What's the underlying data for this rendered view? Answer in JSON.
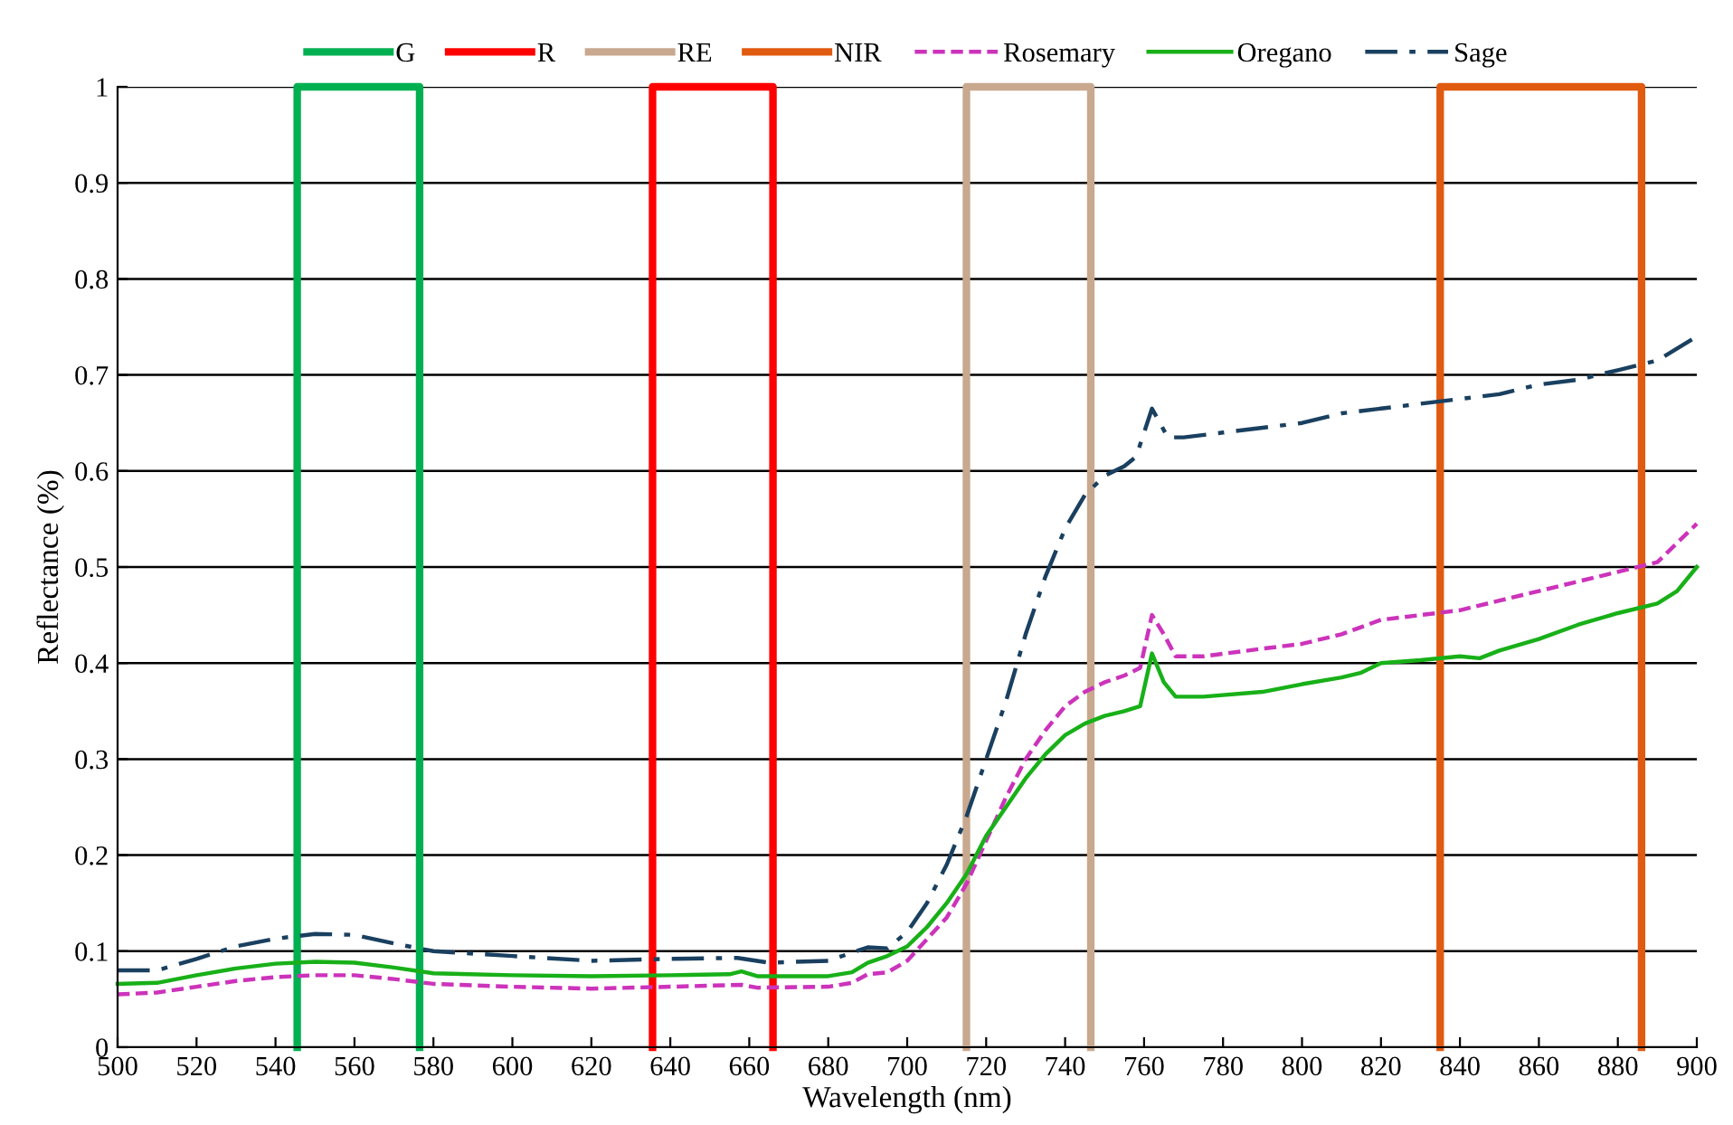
{
  "chart_data": {
    "type": "line",
    "xlabel": "Wavelength (nm)",
    "ylabel": "Reflectance (%)",
    "xlim": [
      500,
      900
    ],
    "xticks": [
      500,
      520,
      540,
      560,
      580,
      600,
      620,
      640,
      660,
      680,
      700,
      720,
      740,
      760,
      780,
      800,
      820,
      840,
      860,
      880,
      900
    ],
    "ylim": [
      0,
      1
    ],
    "yticks": [
      0,
      0.1,
      0.2,
      0.3,
      0.4,
      0.5,
      0.6,
      0.7,
      0.8,
      0.9,
      1
    ],
    "grid": "y",
    "legend": "top",
    "series": [
      {
        "name": "G",
        "color": "#00b050",
        "line_style": "solid",
        "x": [
          545.5,
          545.5,
          576.5,
          576.5
        ],
        "values": [
          0,
          1,
          1,
          0
        ]
      },
      {
        "name": "R",
        "color": "#ff0000",
        "line_style": "solid",
        "x": [
          635.5,
          635.5,
          666,
          666
        ],
        "values": [
          0,
          1,
          1,
          0
        ]
      },
      {
        "name": "RE",
        "color": "#c8a88e",
        "line_style": "solid",
        "x": [
          715,
          715,
          746.5,
          746.5
        ],
        "values": [
          0,
          1,
          1,
          0
        ]
      },
      {
        "name": "NIR",
        "color": "#e05a10",
        "line_style": "solid",
        "x": [
          835,
          835,
          886,
          886
        ],
        "values": [
          0,
          1,
          1,
          0
        ]
      },
      {
        "name": "Rosemary",
        "color": "#cc33bb",
        "line_style": "dashed",
        "x": [
          500,
          510,
          520,
          530,
          540,
          550,
          560,
          570,
          580,
          600,
          620,
          640,
          658,
          662,
          680,
          686,
          690,
          695,
          700,
          710,
          715,
          720,
          725,
          730,
          735,
          740,
          745,
          750,
          755,
          759,
          762,
          765,
          768,
          775,
          790,
          800,
          810,
          820,
          830,
          840,
          850,
          860,
          870,
          880,
          890,
          900
        ],
        "values": [
          0.055,
          0.057,
          0.063,
          0.069,
          0.073,
          0.075,
          0.075,
          0.071,
          0.066,
          0.063,
          0.061,
          0.063,
          0.065,
          0.062,
          0.063,
          0.067,
          0.076,
          0.078,
          0.09,
          0.135,
          0.17,
          0.215,
          0.26,
          0.3,
          0.33,
          0.355,
          0.37,
          0.38,
          0.387,
          0.395,
          0.45,
          0.43,
          0.407,
          0.407,
          0.415,
          0.42,
          0.43,
          0.445,
          0.45,
          0.455,
          0.465,
          0.475,
          0.485,
          0.495,
          0.505,
          0.545
        ]
      },
      {
        "name": "Oregano",
        "color": "#18b018",
        "line_style": "solid",
        "x": [
          500,
          510,
          520,
          530,
          540,
          550,
          560,
          570,
          580,
          600,
          620,
          640,
          655,
          658,
          662,
          680,
          686,
          690,
          695,
          700,
          705,
          710,
          715,
          720,
          725,
          730,
          735,
          740,
          745,
          750,
          755,
          759,
          762,
          765,
          768,
          775,
          790,
          800,
          810,
          815,
          820,
          830,
          840,
          845,
          850,
          860,
          870,
          880,
          890,
          895,
          900
        ],
        "values": [
          0.066,
          0.067,
          0.075,
          0.082,
          0.087,
          0.089,
          0.088,
          0.083,
          0.077,
          0.075,
          0.074,
          0.075,
          0.076,
          0.079,
          0.074,
          0.074,
          0.078,
          0.088,
          0.095,
          0.105,
          0.125,
          0.15,
          0.18,
          0.22,
          0.25,
          0.28,
          0.305,
          0.325,
          0.337,
          0.345,
          0.35,
          0.355,
          0.41,
          0.38,
          0.365,
          0.365,
          0.37,
          0.378,
          0.385,
          0.39,
          0.4,
          0.403,
          0.407,
          0.405,
          0.413,
          0.425,
          0.44,
          0.452,
          0.462,
          0.475,
          0.5
        ]
      },
      {
        "name": "Sage",
        "color": "#1a4060",
        "line_style": "dashdot",
        "x": [
          500,
          510,
          520,
          530,
          540,
          550,
          560,
          570,
          580,
          600,
          620,
          640,
          657,
          665,
          680,
          690,
          695,
          700,
          705,
          710,
          715,
          720,
          725,
          730,
          735,
          740,
          745,
          750,
          755,
          758,
          762,
          766,
          770,
          780,
          790,
          800,
          810,
          820,
          830,
          840,
          850,
          860,
          870,
          880,
          890,
          900
        ],
        "values": [
          0.08,
          0.08,
          0.092,
          0.105,
          0.113,
          0.118,
          0.117,
          0.108,
          0.1,
          0.095,
          0.09,
          0.092,
          0.093,
          0.088,
          0.09,
          0.104,
          0.103,
          0.12,
          0.15,
          0.19,
          0.24,
          0.3,
          0.36,
          0.43,
          0.49,
          0.54,
          0.575,
          0.595,
          0.605,
          0.615,
          0.665,
          0.635,
          0.635,
          0.64,
          0.645,
          0.65,
          0.66,
          0.665,
          0.67,
          0.675,
          0.68,
          0.69,
          0.695,
          0.705,
          0.715,
          0.74
        ]
      }
    ]
  }
}
